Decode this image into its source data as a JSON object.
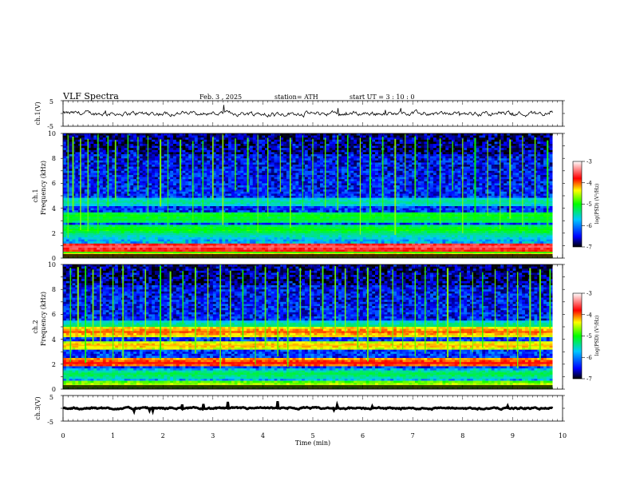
{
  "header": {
    "title": "VLF  Spectra",
    "date": "Feb. 3  , 2025",
    "station": "station= ATH",
    "start": "start  UT  =   3  : 10 : 0"
  },
  "panels": {
    "ch1_wave": {
      "label": "ch.1(V)",
      "yticks": [
        "5",
        "-5"
      ]
    },
    "ch1_spec": {
      "label_line1": "ch.1",
      "label_line2": "Frequency  (kHz)",
      "yticks": [
        "0",
        "2",
        "4",
        "6",
        "8",
        "10"
      ]
    },
    "ch2_spec": {
      "label_line1": "ch.2",
      "label_line2": "Frequency  (kHz)",
      "yticks": [
        "0",
        "2",
        "4",
        "6",
        "8",
        "10"
      ]
    },
    "ch3_wave": {
      "label": "ch.3(V)",
      "yticks": [
        "5",
        "-5"
      ]
    }
  },
  "colorbar": {
    "label": "log(PSD) (V²/Hz)",
    "ticks": [
      "-3",
      "-4",
      "-5",
      "-6",
      "-7"
    ],
    "colors": [
      "#ffffff",
      "#ff0000",
      "#ffff00",
      "#00ff00",
      "#00ffff",
      "#0000ff",
      "#000000"
    ]
  },
  "xaxis": {
    "label": "Time  (min)",
    "ticks": [
      "0",
      "1",
      "2",
      "3",
      "4",
      "5",
      "6",
      "7",
      "8",
      "9",
      "10"
    ]
  },
  "chart_data": [
    {
      "type": "line",
      "title": "ch.1(V)",
      "xlabel": "Time (min)",
      "xlim": [
        0,
        10
      ],
      "ylim": [
        -5,
        5
      ],
      "series": [
        {
          "name": "ch.1(V)",
          "x_range": [
            0,
            9.8
          ],
          "mean": 0,
          "spread": 0.8
        }
      ]
    },
    {
      "type": "heatmap",
      "title": "ch.1 Frequency (kHz)",
      "xlim": [
        0,
        10
      ],
      "ylim": [
        0,
        10
      ],
      "x_end": 9.8,
      "z_range": [
        -7,
        -3
      ],
      "zlabel": "log(PSD) (V²/Hz)",
      "bands": [
        {
          "f": 0.25,
          "level": -4.2
        },
        {
          "f": 0.45,
          "level": -5.0
        },
        {
          "f": 0.9,
          "level": -3.5
        },
        {
          "f": 1.9,
          "level": -5.4
        },
        {
          "f": 2.3,
          "level": -5.0
        },
        {
          "f": 3.1,
          "level": -5.1
        },
        {
          "f": 3.4,
          "level": -5.0
        },
        {
          "f": 4.5,
          "level": -5.4
        }
      ],
      "vertical_spikes_t": [
        0.1,
        0.2,
        0.35,
        0.5,
        0.7,
        0.9,
        1.05,
        1.3,
        1.5,
        1.7,
        1.95,
        2.1,
        2.35,
        2.6,
        2.8,
        3.0,
        3.2,
        3.45,
        3.7,
        3.9,
        4.1,
        4.35,
        4.55,
        4.8,
        5.0,
        5.25,
        5.5,
        5.7,
        5.95,
        6.15,
        6.4,
        6.65,
        6.85,
        7.05,
        7.3,
        7.55,
        7.8,
        8.0,
        8.25,
        8.5,
        8.75,
        8.95,
        9.2,
        9.45,
        9.7
      ]
    },
    {
      "type": "heatmap",
      "title": "ch.2 Frequency (kHz)",
      "xlim": [
        0,
        10
      ],
      "ylim": [
        0,
        10
      ],
      "x_end": 9.8,
      "z_range": [
        -7,
        -3
      ],
      "zlabel": "log(PSD) (V²/Hz)",
      "bands": [
        {
          "f": 0.3,
          "level": -4.5
        },
        {
          "f": 1.2,
          "level": -5.2
        },
        {
          "f": 2.1,
          "level": -3.8
        },
        {
          "f": 3.5,
          "level": -4.2
        },
        {
          "f": 4.6,
          "level": -4.0
        },
        {
          "f": 5.1,
          "level": -5.3
        }
      ],
      "vertical_spikes_t": [
        0.15,
        0.3,
        0.45,
        0.6,
        0.75,
        1.0,
        1.2,
        1.4,
        1.65,
        1.95,
        2.15,
        2.4,
        2.65,
        2.9,
        3.15,
        3.35,
        3.6,
        3.85,
        4.05,
        4.3,
        4.5,
        4.75,
        4.95,
        5.2,
        5.45,
        5.65,
        5.9,
        6.1,
        6.35,
        6.6,
        6.8,
        7.05,
        7.25,
        7.5,
        7.7,
        7.95,
        8.2,
        8.4,
        8.65,
        8.9,
        9.1,
        9.35,
        9.55,
        9.75
      ]
    },
    {
      "type": "line",
      "title": "ch.3(V)",
      "xlabel": "Time (min)",
      "xlim": [
        0,
        10
      ],
      "ylim": [
        -5,
        5
      ],
      "series": [
        {
          "name": "ch.3(V)",
          "x_range": [
            0,
            9.8
          ],
          "mean": 0,
          "spread": 0.3
        }
      ]
    }
  ]
}
